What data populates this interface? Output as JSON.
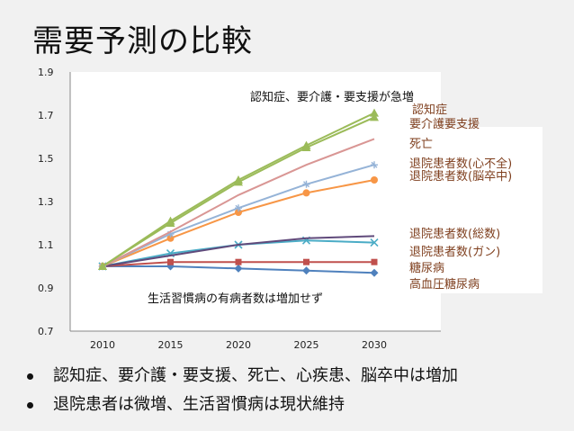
{
  "slide": {
    "title": "需要予測の比較",
    "bullets": [
      "認知症、要介護・要支援、死亡、心疾患、脳卒中は増加",
      "退院患者は微増、生活習慣病は現状維持"
    ]
  },
  "colors": {
    "green": "#9bbb59",
    "pink": "#d99694",
    "lightblue": "#95b3d7",
    "orange": "#f79646",
    "purple": "#604a7b",
    "teal": "#4bacc6",
    "red": "#c0504d",
    "blue": "#4f81bd",
    "annotation": "#111111",
    "legendText": "#7f3f1e"
  },
  "chart_data": {
    "type": "line",
    "categories": [
      "2010",
      "2015",
      "2020",
      "2025",
      "2030"
    ],
    "ylim": [
      0.7,
      1.9
    ],
    "yticks": [
      "0.7",
      "0.9",
      "1.1",
      "1.3",
      "1.5",
      "1.7",
      "1.9"
    ],
    "annotations": [
      "認知症、要介護・要支援が急増",
      "生活習慣病の有病者数は増加せず"
    ],
    "series": [
      {
        "name": "認知症",
        "color": "green",
        "marker": "triangle",
        "values": [
          1.0,
          1.2,
          1.39,
          1.55,
          1.69
        ]
      },
      {
        "name": "要介護要支援",
        "color": "green",
        "marker": "triangle",
        "values": [
          1.0,
          1.21,
          1.4,
          1.56,
          1.71
        ]
      },
      {
        "name": "死亡",
        "color": "pink",
        "marker": "none",
        "values": [
          1.0,
          1.16,
          1.33,
          1.47,
          1.59
        ]
      },
      {
        "name": "退院患者数(心不全)",
        "color": "lightblue",
        "marker": "plus",
        "values": [
          1.0,
          1.15,
          1.27,
          1.38,
          1.47
        ]
      },
      {
        "name": "退院患者数(脳卒中)",
        "color": "orange",
        "marker": "circle",
        "values": [
          1.0,
          1.13,
          1.25,
          1.34,
          1.4
        ]
      },
      {
        "name": "退院患者数(総数)",
        "color": "purple",
        "marker": "none",
        "values": [
          1.0,
          1.05,
          1.1,
          1.13,
          1.14
        ]
      },
      {
        "name": "退院患者数(ガン)",
        "color": "teal",
        "marker": "x",
        "values": [
          1.0,
          1.06,
          1.1,
          1.12,
          1.11
        ]
      },
      {
        "name": "糖尿病",
        "color": "red",
        "marker": "square",
        "values": [
          1.0,
          1.02,
          1.02,
          1.02,
          1.02
        ]
      },
      {
        "name": "高血圧糖尿病",
        "color": "blue",
        "marker": "diamond",
        "values": [
          1.0,
          1.0,
          0.99,
          0.98,
          0.97
        ]
      }
    ]
  }
}
